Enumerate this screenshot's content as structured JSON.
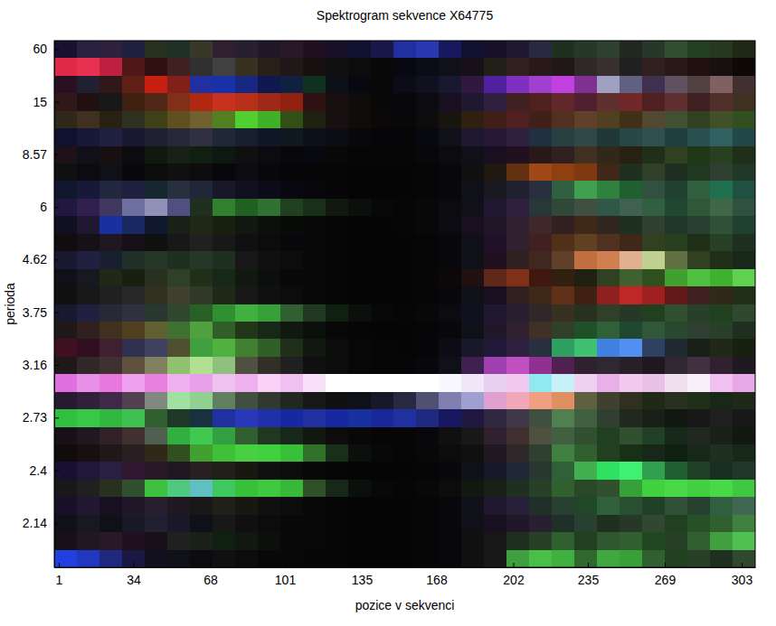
{
  "chart_data": {
    "type": "heatmap",
    "title": "Spektrogram sekvence X64775",
    "x_label": "pozice v sekvenci",
    "y_label": "perioda",
    "xlim": [
      -1,
      309
    ],
    "xticks": [
      1,
      34,
      68,
      101,
      135,
      168,
      202,
      235,
      269,
      303
    ],
    "x_edges": [
      -1,
      9,
      19,
      29,
      39,
      49,
      59,
      69,
      79,
      89,
      99,
      109,
      119,
      129,
      139,
      149,
      159,
      169,
      179,
      189,
      199,
      209,
      219,
      229,
      239,
      249,
      259,
      269,
      279,
      289,
      299,
      309
    ],
    "categories": [
      60,
      null,
      null,
      15,
      null,
      null,
      8.57,
      null,
      null,
      6,
      null,
      null,
      4.62,
      null,
      null,
      3.75,
      null,
      null,
      3.16,
      null,
      null,
      2.73,
      null,
      null,
      2.4,
      null,
      null,
      2.14,
      null,
      null
    ],
    "cells": [
      [
        "#1a1030",
        "#2a2040",
        "#302040",
        "#202040",
        "#283020",
        "#203028",
        "#383828",
        "#302030",
        "#282030",
        "#201828",
        "#281828",
        "#201020",
        "#181028",
        "#101030",
        "#181848",
        "#2030a0",
        "#2838b0",
        "#181860",
        "#101030",
        "#181028",
        "#201830",
        "#282840",
        "#203020",
        "#283828",
        "#304030",
        "#202820",
        "#283828",
        "#305030",
        "#204020",
        "#283820",
        "#202818"
      ],
      [
        "#e02848",
        "#e83050",
        "#c02040",
        "#501818",
        "#301010",
        "#402020",
        "#303030",
        "#404040",
        "#383020",
        "#282018",
        "#201818",
        "#181010",
        "#101010",
        "#0c0c0c",
        "#080808",
        "#080810",
        "#0c0c18",
        "#101018",
        "#181018",
        "#202018",
        "#302020",
        "#281818",
        "#201818",
        "#302828",
        "#383030",
        "#202020",
        "#302020",
        "#281818",
        "#201010",
        "#181010",
        "#100808"
      ],
      [
        "#281020",
        "#202030",
        "#301818",
        "#602018",
        "#c82010",
        "#802018",
        "#2030a0",
        "#1830a8",
        "#182880",
        "#101850",
        "#102040",
        "#103020",
        "#0c1018",
        "#080810",
        "#080808",
        "#0c0c18",
        "#101020",
        "#181830",
        "#301840",
        "#5020a0",
        "#8030c0",
        "#a040d0",
        "#c040e0",
        "#803090",
        "#a0a0c0",
        "#606080",
        "#403050",
        "#605060",
        "#504040",
        "#806060",
        "#403030"
      ],
      [
        "#301818",
        "#201010",
        "#181818",
        "#402010",
        "#502818",
        "#803018",
        "#b02810",
        "#c83020",
        "#b83018",
        "#a02818",
        "#902010",
        "#301010",
        "#181010",
        "#100c0c",
        "#080808",
        "#08080c",
        "#0c0c10",
        "#181020",
        "#201830",
        "#302040",
        "#402020",
        "#502020",
        "#602828",
        "#502030",
        "#603030",
        "#702828",
        "#502020",
        "#603030",
        "#402020",
        "#503028",
        "#403020"
      ],
      [
        "#302818",
        "#403020",
        "#282010",
        "#303020",
        "#404018",
        "#605020",
        "#706030",
        "#508020",
        "#50d030",
        "#40b028",
        "#305018",
        "#202010",
        "#181010",
        "#100c08",
        "#0c0808",
        "#080808",
        "#0c0c0c",
        "#181410",
        "#302010",
        "#402018",
        "#502020",
        "#402018",
        "#503020",
        "#604028",
        "#504020",
        "#403018",
        "#504830",
        "#405030",
        "#304020",
        "#405028",
        "#305020"
      ],
      [
        "#101030",
        "#181838",
        "#202040",
        "#181830",
        "#202030",
        "#282838",
        "#303040",
        "#202838",
        "#182030",
        "#101828",
        "#101820",
        "#0c1018",
        "#0c0c14",
        "#08080c",
        "#060608",
        "#060608",
        "#080810",
        "#101018",
        "#201830",
        "#281838",
        "#302040",
        "#203040",
        "#284040",
        "#304848",
        "#203838",
        "#284848",
        "#305050",
        "#204040",
        "#285050",
        "#306060",
        "#204848"
      ],
      [
        "#201018",
        "#101018",
        "#181010",
        "#0c0c10",
        "#101810",
        "#182018",
        "#102010",
        "#0c1810",
        "#101010",
        "#0c0c10",
        "#08080c",
        "#080810",
        "#080808",
        "#060606",
        "#060606",
        "#060606",
        "#08080c",
        "#0c0c10",
        "#101018",
        "#181020",
        "#201020",
        "#281818",
        "#302020",
        "#403020",
        "#302818",
        "#282010",
        "#203018",
        "#304020",
        "#203818",
        "#284020",
        "#203018"
      ],
      [
        "#101010",
        "#0c0c10",
        "#101018",
        "#08080c",
        "#0c0c0c",
        "#101010",
        "#0c0c0c",
        "#08080c",
        "#0c0c10",
        "#08080c",
        "#060608",
        "#060606",
        "#060606",
        "#050505",
        "#050505",
        "#050505",
        "#060606",
        "#08080c",
        "#101010",
        "#201810",
        "#603010",
        "#a04818",
        "#904010",
        "#803810",
        "#402818",
        "#203020",
        "#304028",
        "#203020",
        "#203820",
        "#304030",
        "#203828"
      ],
      [
        "#101830",
        "#181838",
        "#202840",
        "#202040",
        "#182830",
        "#283040",
        "#202838",
        "#181828",
        "#101020",
        "#0c0c18",
        "#080810",
        "#08080c",
        "#060608",
        "#050505",
        "#050505",
        "#050505",
        "#060608",
        "#08080c",
        "#101018",
        "#181820",
        "#202030",
        "#283040",
        "#306040",
        "#40a050",
        "#308040",
        "#206030",
        "#305040",
        "#204030",
        "#306040",
        "#207050",
        "#205040"
      ],
      [
        "#201840",
        "#302050",
        "#403860",
        "#7070a0",
        "#9090b8",
        "#505080",
        "#203020",
        "#308030",
        "#206020",
        "#307030",
        "#204020",
        "#183018",
        "#101810",
        "#0c100c",
        "#080808",
        "#060606",
        "#080808",
        "#0c0c10",
        "#101018",
        "#201830",
        "#302040",
        "#283838",
        "#304838",
        "#405040",
        "#305848",
        "#406050",
        "#306040",
        "#204830",
        "#305838",
        "#406848",
        "#305040"
      ],
      [
        "#101020",
        "#201830",
        "#1830a0",
        "#182860",
        "#101830",
        "#182018",
        "#202818",
        "#182010",
        "#101810",
        "#0c100c",
        "#080c08",
        "#080808",
        "#060606",
        "#050505",
        "#050505",
        "#060606",
        "#080808",
        "#0c0c10",
        "#181020",
        "#201828",
        "#302030",
        "#402828",
        "#302020",
        "#402818",
        "#302820",
        "#203020",
        "#304030",
        "#203828",
        "#284030",
        "#305038",
        "#204030"
      ],
      [
        "#100c10",
        "#181018",
        "#201820",
        "#181018",
        "#101010",
        "#181818",
        "#202020",
        "#181818",
        "#101010",
        "#0c0c0c",
        "#08080c",
        "#080808",
        "#060606",
        "#050505",
        "#050505",
        "#050505",
        "#060608",
        "#08080c",
        "#101018",
        "#201028",
        "#302030",
        "#402020",
        "#503018",
        "#604020",
        "#503020",
        "#402818",
        "#304020",
        "#284020",
        "#203018",
        "#284028",
        "#203020"
      ],
      [
        "#181830",
        "#202040",
        "#182030",
        "#203028",
        "#283828",
        "#203020",
        "#283828",
        "#203020",
        "#181818",
        "#101010",
        "#0c0c0c",
        "#080808",
        "#060606",
        "#050505",
        "#050505",
        "#050505",
        "#060606",
        "#08080c",
        "#101018",
        "#201020",
        "#302020",
        "#402820",
        "#604028",
        "#c07040",
        "#d08050",
        "#e0b090",
        "#c0d090",
        "#607040",
        "#304020",
        "#203018",
        "#182818"
      ],
      [
        "#101018",
        "#181820",
        "#202818",
        "#182010",
        "#283020",
        "#304028",
        "#203018",
        "#182818",
        "#101810",
        "#0c100c",
        "#080808",
        "#080808",
        "#060606",
        "#050505",
        "#050505",
        "#050505",
        "#060606",
        "#0c0808",
        "#201010",
        "#602818",
        "#803018",
        "#401810",
        "#302010",
        "#202010",
        "#304020",
        "#406030",
        "#305020",
        "#40a030",
        "#50c040",
        "#40b030",
        "#60d050"
      ],
      [
        "#101010",
        "#181818",
        "#202020",
        "#282828",
        "#303020",
        "#404030",
        "#303828",
        "#202818",
        "#181818",
        "#101010",
        "#0c0c0c",
        "#080808",
        "#060606",
        "#050505",
        "#050505",
        "#050505",
        "#060606",
        "#08080c",
        "#101018",
        "#181020",
        "#302020",
        "#402818",
        "#603018",
        "#402010",
        "#902020",
        "#c02828",
        "#a02020",
        "#601818",
        "#402020",
        "#302818",
        "#203018"
      ],
      [
        "#181830",
        "#202040",
        "#282838",
        "#303040",
        "#283830",
        "#304830",
        "#286028",
        "#309030",
        "#40b040",
        "#38a038",
        "#306030",
        "#203820",
        "#102010",
        "#0c100c",
        "#080808",
        "#060606",
        "#080808",
        "#0c0c10",
        "#101020",
        "#201830",
        "#282030",
        "#302828",
        "#383020",
        "#283020",
        "#304028",
        "#283828",
        "#204020",
        "#305030",
        "#284028",
        "#204020",
        "#304830"
      ],
      [
        "#201818",
        "#302020",
        "#403020",
        "#504020",
        "#606030",
        "#407030",
        "#50a040",
        "#306028",
        "#203818",
        "#182818",
        "#101810",
        "#0c100c",
        "#080808",
        "#060606",
        "#050505",
        "#050505",
        "#060608",
        "#08080c",
        "#101018",
        "#201828",
        "#302030",
        "#403028",
        "#304028",
        "#205028",
        "#306038",
        "#204830",
        "#305838",
        "#284830",
        "#304030",
        "#284028",
        "#203020"
      ],
      [
        "#401020",
        "#301020",
        "#402030",
        "#303050",
        "#404060",
        "#505030",
        "#40a040",
        "#50b040",
        "#408030",
        "#306028",
        "#203018",
        "#101810",
        "#0c0c0c",
        "#080808",
        "#060606",
        "#050505",
        "#060608",
        "#0c0c14",
        "#181828",
        "#201838",
        "#302040",
        "#283040",
        "#30a060",
        "#40c070",
        "#4080e0",
        "#5090f0",
        "#304060",
        "#202830",
        "#182018",
        "#202818",
        "#182010"
      ],
      [
        "#201818",
        "#302828",
        "#403030",
        "#605040",
        "#808060",
        "#90c070",
        "#b0e090",
        "#90c080",
        "#505040",
        "#303028",
        "#202020",
        "#101010",
        "#0c0c0c",
        "#080808",
        "#060606",
        "#060608",
        "#08080c",
        "#101018",
        "#402050",
        "#a040b0",
        "#c050c0",
        "#903090",
        "#502050",
        "#302030",
        "#302830",
        "#282028",
        "#201820",
        "#302830",
        "#403040",
        "#302030",
        "#201820"
      ],
      [
        "#e070e0",
        "#e890e8",
        "#e878e0",
        "#f0a0f0",
        "#e880e0",
        "#f0b0f0",
        "#e8a0e8",
        "#f0c0f0",
        "#f0b0f0",
        "#f8d0f8",
        "#f0c0f0",
        "#f8e0f8",
        "#ffffff",
        "#ffffff",
        "#ffffff",
        "#ffffff",
        "#ffffff",
        "#f8f8ff",
        "#f0e8f8",
        "#e8d0f0",
        "#f0c8f0",
        "#90e8f0",
        "#c8f0f8",
        "#f0d0f0",
        "#e8b0e8",
        "#f0c8f0",
        "#e8c0e8",
        "#f0e0f0",
        "#f8f0f8",
        "#f0c0f0",
        "#e8a8e8"
      ],
      [
        "#281830",
        "#302038",
        "#402848",
        "#504050",
        "#808880",
        "#a0e0a0",
        "#90d090",
        "#608060",
        "#405040",
        "#303830",
        "#202820",
        "#181818",
        "#101010",
        "#101018",
        "#181828",
        "#282840",
        "#505070",
        "#8080b0",
        "#a0a0d0",
        "#e0a0d0",
        "#f0a8b8",
        "#f0a080",
        "#e09060",
        "#606040",
        "#404030",
        "#303020",
        "#202818",
        "#283020",
        "#203018",
        "#182818",
        "#202818"
      ],
      [
        "#30c040",
        "#38c848",
        "#30b840",
        "#40c050",
        "#306030",
        "#203828",
        "#183040",
        "#2030a0",
        "#2838b8",
        "#2030a8",
        "#1828a0",
        "#2030a0",
        "#1828a0",
        "#1830a0",
        "#182898",
        "#2030a0",
        "#202880",
        "#181860",
        "#201840",
        "#302840",
        "#403848",
        "#405040",
        "#508050",
        "#406040",
        "#304030",
        "#202820",
        "#182018",
        "#101810",
        "#181818",
        "#202020",
        "#181818"
      ],
      [
        "#181018",
        "#201820",
        "#302028",
        "#403030",
        "#506050",
        "#30b040",
        "#40c850",
        "#30a040",
        "#306030",
        "#203820",
        "#182818",
        "#101810",
        "#0c0c0c",
        "#080808",
        "#060606",
        "#060606",
        "#08080c",
        "#101010",
        "#181818",
        "#302030",
        "#403030",
        "#505040",
        "#406040",
        "#305030",
        "#204020",
        "#305030",
        "#204028",
        "#182818",
        "#202820",
        "#182018",
        "#101810"
      ],
      [
        "#100c0c",
        "#181010",
        "#201818",
        "#282020",
        "#302818",
        "#305020",
        "#40a030",
        "#40c038",
        "#48d040",
        "#40d040",
        "#38c038",
        "#307028",
        "#183018",
        "#0c100c",
        "#080808",
        "#060606",
        "#080808",
        "#0c0c0c",
        "#101010",
        "#201820",
        "#302828",
        "#304030",
        "#408040",
        "#306030",
        "#204020",
        "#183018",
        "#182818",
        "#102010",
        "#182818",
        "#203020",
        "#182818"
      ],
      [
        "#181030",
        "#201838",
        "#282040",
        "#301830",
        "#281828",
        "#201820",
        "#282020",
        "#202018",
        "#181810",
        "#101010",
        "#0c0c0c",
        "#080808",
        "#060606",
        "#050505",
        "#050505",
        "#050505",
        "#060606",
        "#08080c",
        "#101018",
        "#181828",
        "#202838",
        "#283830",
        "#306038",
        "#40b050",
        "#30e060",
        "#40f070",
        "#30a050",
        "#206030",
        "#204028",
        "#183020",
        "#203828"
      ],
      [
        "#181818",
        "#202020",
        "#283020",
        "#305030",
        "#40c040",
        "#50c880",
        "#60c0c0",
        "#40c860",
        "#38c038",
        "#40c840",
        "#38b838",
        "#305028",
        "#182818",
        "#0c100c",
        "#080808",
        "#060606",
        "#080808",
        "#0c0c0c",
        "#101810",
        "#182018",
        "#203020",
        "#284028",
        "#306030",
        "#284828",
        "#305030",
        "#38a038",
        "#40d040",
        "#48d848",
        "#40d040",
        "#48d848",
        "#40c840"
      ],
      [
        "#181028",
        "#201830",
        "#181020",
        "#201828",
        "#282030",
        "#201820",
        "#181818",
        "#202018",
        "#181810",
        "#101010",
        "#0c0c0c",
        "#080808",
        "#060606",
        "#050505",
        "#050505",
        "#050505",
        "#060606",
        "#08080c",
        "#101018",
        "#201830",
        "#282038",
        "#203028",
        "#284030",
        "#204828",
        "#306038",
        "#285030",
        "#204028",
        "#305038",
        "#284030",
        "#306040",
        "#406850"
      ],
      [
        "#101018",
        "#181820",
        "#101018",
        "#181828",
        "#202030",
        "#181828",
        "#101018",
        "#181818",
        "#101010",
        "#0c0c0c",
        "#080808",
        "#080808",
        "#060606",
        "#050505",
        "#050505",
        "#050505",
        "#060606",
        "#08080c",
        "#101018",
        "#181020",
        "#201828",
        "#282030",
        "#203028",
        "#284030",
        "#203020",
        "#283828",
        "#304830",
        "#204020",
        "#285028",
        "#306030",
        "#408040"
      ],
      [
        "#181018",
        "#201820",
        "#281828",
        "#201020",
        "#181018",
        "#202020",
        "#182018",
        "#102010",
        "#101810",
        "#0c100c",
        "#080808",
        "#080808",
        "#060606",
        "#050505",
        "#050505",
        "#050505",
        "#060606",
        "#08080c",
        "#101010",
        "#181818",
        "#203020",
        "#284028",
        "#306030",
        "#204020",
        "#305830",
        "#306030",
        "#204820",
        "#284028",
        "#306030",
        "#40a040",
        "#50c050"
      ],
      [
        "#2040e0",
        "#2038c0",
        "#202880",
        "#181840",
        "#101020",
        "#101018",
        "#0c0c10",
        "#101010",
        "#0c0c0c",
        "#080808",
        "#080808",
        "#060606",
        "#060606",
        "#050505",
        "#050505",
        "#050505",
        "#060606",
        "#08080c",
        "#101010",
        "#181818",
        "#40a040",
        "#48c048",
        "#40b040",
        "#306830",
        "#40a840",
        "#38a038",
        "#306030",
        "#204020",
        "#284028",
        "#203020",
        "#304830"
      ]
    ]
  }
}
